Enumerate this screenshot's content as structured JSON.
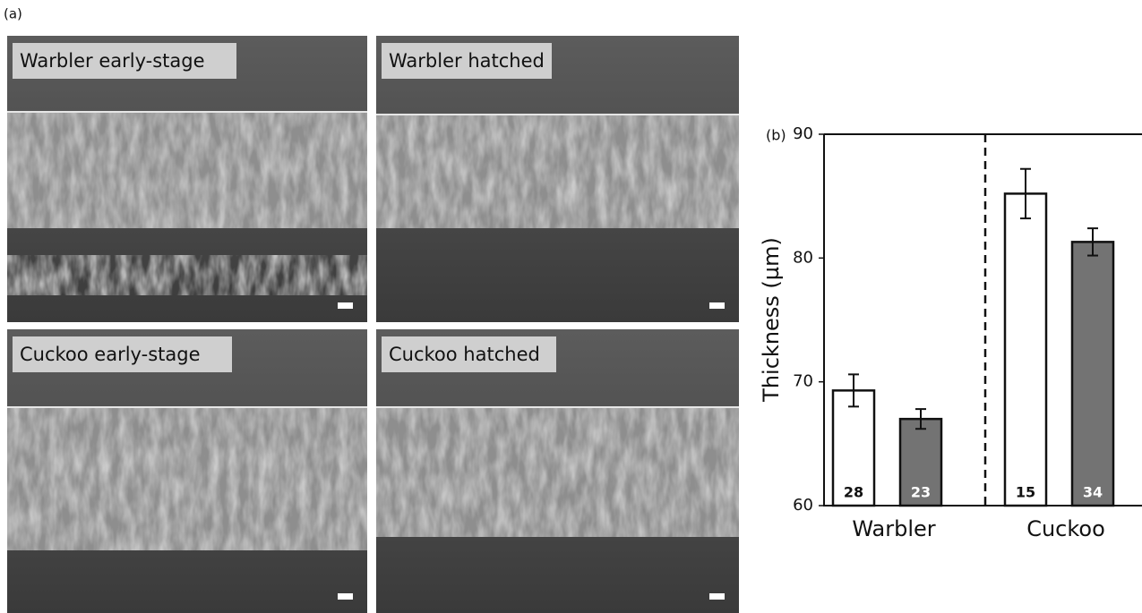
{
  "panel_a": {
    "label": "(a)",
    "images": [
      "Warbler early-stage",
      "Warbler hatched",
      "Cuckoo early-stage",
      "Cuckoo hatched"
    ]
  },
  "chart_data": {
    "type": "bar",
    "panel_label": "(b)",
    "ylabel": "Thickness (µm)",
    "categories": [
      "Warbler",
      "Cuckoo"
    ],
    "series": [
      {
        "color": "#ffffff",
        "values": [
          69.3,
          85.2
        ],
        "errors": [
          1.3,
          2.0
        ],
        "sample_sizes": [
          28,
          15
        ]
      },
      {
        "color": "#737373",
        "values": [
          67.0,
          81.3
        ],
        "errors": [
          0.8,
          1.1
        ],
        "sample_sizes": [
          23,
          34
        ]
      }
    ],
    "ylim": [
      60,
      90
    ],
    "yticks": [
      60,
      70,
      80,
      90
    ]
  }
}
